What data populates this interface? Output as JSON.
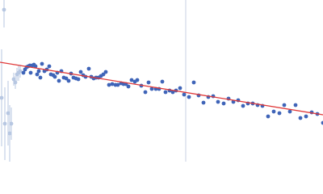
{
  "chart_data": {
    "type": "scatter",
    "xlim": [
      0,
      400
    ],
    "ylim": [
      200,
      0
    ],
    "vline": {
      "x": 230,
      "color": "#c9d1e3"
    },
    "fit": {
      "x": [
        0,
        400
      ],
      "values": [
        77,
        142
      ],
      "color": "#e03a3a"
    },
    "series": [
      {
        "color": "#b7c7e2",
        "x": [
          5,
          2,
          6,
          10,
          12,
          14,
          17,
          19,
          21,
          23,
          25
        ],
        "values": [
          12,
          121,
          153,
          140,
          165,
          153,
          98,
          102,
          92,
          90,
          88
        ],
        "errors": [
          22,
          60,
          45,
          40,
          35,
          20,
          8,
          8,
          8,
          10,
          8
        ]
      },
      {
        "color": "#3f64b8",
        "x": [
          29,
          31,
          33,
          35,
          37,
          38,
          40,
          42,
          44,
          46,
          48,
          50,
          52,
          55,
          58,
          61,
          63,
          66,
          68,
          71,
          73,
          76,
          79,
          82,
          85,
          88,
          91,
          94,
          97,
          100,
          103,
          106,
          110,
          113,
          116,
          119,
          122,
          125,
          128,
          131,
          135,
          139,
          143,
          146,
          150,
          153,
          156,
          159,
          163,
          167,
          170,
          175,
          180,
          184,
          188,
          193,
          197,
          201,
          205,
          210,
          214,
          218,
          223,
          228,
          234,
          240,
          246,
          252,
          258,
          264,
          270,
          277,
          283,
          289,
          295,
          301,
          307,
          313,
          319,
          325,
          332,
          339,
          346,
          352,
          359,
          366,
          372,
          379,
          386,
          393,
          400
        ],
        "values": [
          90,
          86,
          83,
          82,
          81,
          90,
          81,
          80,
          82,
          92,
          88,
          96,
          79,
          88,
          86,
          82,
          92,
          93,
          95,
          90,
          100,
          88,
          96,
          97,
          100,
          91,
          96,
          97,
          98,
          89,
          93,
          95,
          85,
          95,
          97,
          96,
          96,
          94,
          92,
          89,
          105,
          104,
          105,
          105,
          103,
          104,
          104,
          107,
          99,
          101,
          99,
          106,
          114,
          102,
          110,
          110,
          110,
          101,
          114,
          112,
          114,
          112,
          109,
          117,
          120,
          102,
          118,
          127,
          120,
          119,
          126,
          128,
          122,
          126,
          124,
          131,
          128,
          128,
          130,
          131,
          144,
          138,
          140,
          130,
          138,
          130,
          146,
          144,
          139,
          141,
          152
        ]
      }
    ]
  }
}
